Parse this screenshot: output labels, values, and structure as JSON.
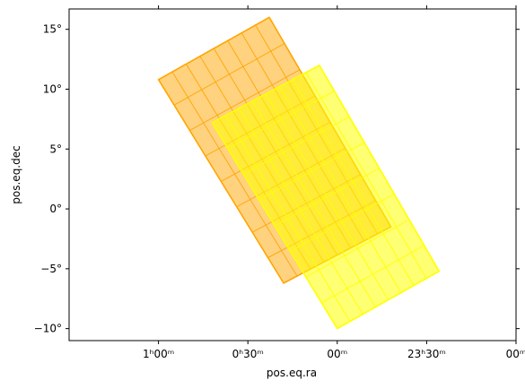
{
  "chart_data": {
    "type": "area",
    "xlabel": "pos.eq.ra",
    "ylabel": "pos.eq.dec",
    "x_axis": {
      "inverted": true,
      "unit": "hours",
      "range": [
        1.5,
        -1.0
      ],
      "ticks": [
        {
          "value": 1.0,
          "label": "1ʰ00ᵐ"
        },
        {
          "value": 0.5,
          "label": "0ʰ30ᵐ"
        },
        {
          "value": 0.0,
          "label": "00ᵐ"
        },
        {
          "value": -0.5,
          "label": "23ʰ30ᵐ"
        },
        {
          "value": -1.0,
          "label": "00ᵐ"
        }
      ]
    },
    "y_axis": {
      "unit": "degrees",
      "range": [
        -11,
        16.7
      ],
      "ticks": [
        {
          "value": 15,
          "label": "15°"
        },
        {
          "value": 10,
          "label": "10°"
        },
        {
          "value": 5,
          "label": "5°"
        },
        {
          "value": 0,
          "label": "0°"
        },
        {
          "value": -5,
          "label": "−5°"
        },
        {
          "value": -10,
          "label": "−10°"
        }
      ]
    },
    "series": [
      {
        "color": "#ffa500",
        "fill_opacity": 0.5,
        "polygon": [
          [
            1.0,
            10.8
          ],
          [
            0.38,
            16.0
          ],
          [
            -0.3,
            -1.5
          ],
          [
            0.3,
            -6.2
          ]
        ]
      },
      {
        "color": "#ffff00",
        "fill_opacity": 0.55,
        "polygon": [
          [
            0.7,
            7.2
          ],
          [
            0.1,
            12.0
          ],
          [
            -0.57,
            -5.2
          ],
          [
            0.0,
            -10.0
          ]
        ]
      }
    ],
    "grid": false
  }
}
